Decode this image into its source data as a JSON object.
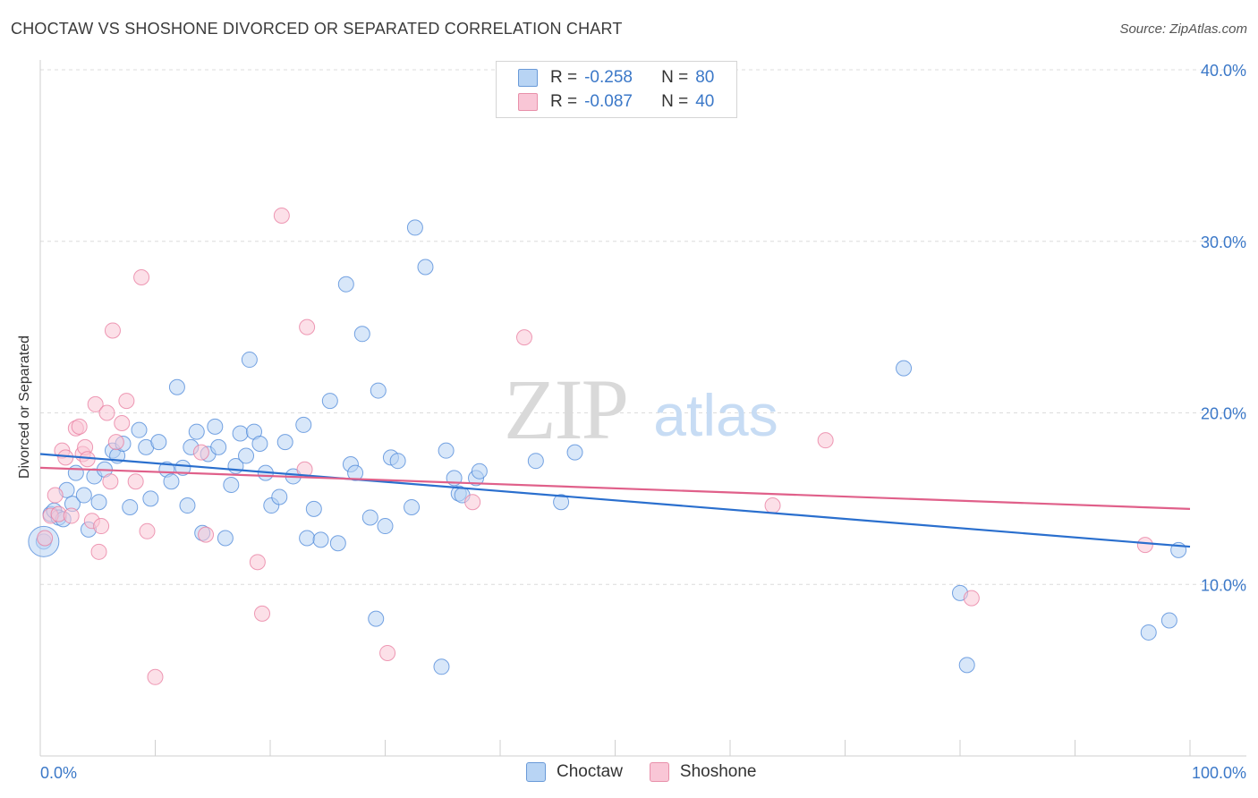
{
  "title": "CHOCTAW VS SHOSHONE DIVORCED OR SEPARATED CORRELATION CHART",
  "source": "Source: ZipAtlas.com",
  "watermark": {
    "zip": "ZIP",
    "atlas": "atlas"
  },
  "legend": {
    "r_label": "R =",
    "n_label": "N =",
    "rows": [
      {
        "name": "Choctaw",
        "r": "-0.258",
        "n": "80",
        "color": "#a8c8f0",
        "border": "#6a9ad8"
      },
      {
        "name": "Shoshone",
        "r": "-0.087",
        "n": "40",
        "color": "#f8bcd0",
        "border": "#e890aa"
      }
    ]
  },
  "bottom_legend": {
    "choctaw": "Choctaw",
    "shoshone": "Shoshone"
  },
  "chart_data": {
    "type": "scatter",
    "title": "CHOCTAW VS SHOSHONE DIVORCED OR SEPARATED CORRELATION CHART",
    "xlabel": "",
    "ylabel": "Divorced or Separated",
    "xlim": [
      0,
      100
    ],
    "ylim": [
      0,
      40
    ],
    "x_tick_labels": [
      "0.0%",
      "100.0%"
    ],
    "y_tick_labels": [
      "10.0%",
      "20.0%",
      "30.0%",
      "40.0%"
    ],
    "y_ticks": [
      10,
      20,
      30,
      40
    ],
    "grid": true,
    "legend_position": "top-center",
    "series": [
      {
        "name": "Choctaw",
        "color": "#4a86d8",
        "fill": "#b8d4f4",
        "trend": {
          "x": [
            0,
            100
          ],
          "y": [
            17.6,
            12.2
          ],
          "color": "#2a6fce"
        },
        "points": [
          [
            0.3,
            12.5
          ],
          [
            0.9,
            14.1
          ],
          [
            1.2,
            14.3
          ],
          [
            1.6,
            13.9
          ],
          [
            2.0,
            13.8
          ],
          [
            2.3,
            15.5
          ],
          [
            2.8,
            14.7
          ],
          [
            3.1,
            16.5
          ],
          [
            3.8,
            15.2
          ],
          [
            4.2,
            13.2
          ],
          [
            4.7,
            16.3
          ],
          [
            5.1,
            14.8
          ],
          [
            5.6,
            16.7
          ],
          [
            6.3,
            17.8
          ],
          [
            6.7,
            17.5
          ],
          [
            7.2,
            18.2
          ],
          [
            7.8,
            14.5
          ],
          [
            8.6,
            19.0
          ],
          [
            9.2,
            18.0
          ],
          [
            9.6,
            15.0
          ],
          [
            10.3,
            18.3
          ],
          [
            11.0,
            16.7
          ],
          [
            11.4,
            16.0
          ],
          [
            11.9,
            21.5
          ],
          [
            12.4,
            16.8
          ],
          [
            12.8,
            14.6
          ],
          [
            13.1,
            18.0
          ],
          [
            13.6,
            18.9
          ],
          [
            14.1,
            13.0
          ],
          [
            14.6,
            17.6
          ],
          [
            15.2,
            19.2
          ],
          [
            15.5,
            18.0
          ],
          [
            16.1,
            12.7
          ],
          [
            16.6,
            15.8
          ],
          [
            17.0,
            16.9
          ],
          [
            17.4,
            18.8
          ],
          [
            17.9,
            17.5
          ],
          [
            18.2,
            23.1
          ],
          [
            18.6,
            18.9
          ],
          [
            19.1,
            18.2
          ],
          [
            19.6,
            16.5
          ],
          [
            20.1,
            14.6
          ],
          [
            20.8,
            15.1
          ],
          [
            21.3,
            18.3
          ],
          [
            22.0,
            16.3
          ],
          [
            22.9,
            19.3
          ],
          [
            23.2,
            12.7
          ],
          [
            23.8,
            14.4
          ],
          [
            24.4,
            12.6
          ],
          [
            25.2,
            20.7
          ],
          [
            25.9,
            12.4
          ],
          [
            26.6,
            27.5
          ],
          [
            27.0,
            17.0
          ],
          [
            27.4,
            16.5
          ],
          [
            28.0,
            24.6
          ],
          [
            28.7,
            13.9
          ],
          [
            29.2,
            8.0
          ],
          [
            29.4,
            21.3
          ],
          [
            30.0,
            13.4
          ],
          [
            30.5,
            17.4
          ],
          [
            31.1,
            17.2
          ],
          [
            32.3,
            14.5
          ],
          [
            32.6,
            30.8
          ],
          [
            33.5,
            28.5
          ],
          [
            34.9,
            5.2
          ],
          [
            35.3,
            17.8
          ],
          [
            36.0,
            16.2
          ],
          [
            36.4,
            15.3
          ],
          [
            36.7,
            15.2
          ],
          [
            37.9,
            16.2
          ],
          [
            38.2,
            16.6
          ],
          [
            43.1,
            17.2
          ],
          [
            45.3,
            14.8
          ],
          [
            46.5,
            17.7
          ],
          [
            75.1,
            22.6
          ],
          [
            80.0,
            9.5
          ],
          [
            80.6,
            5.3
          ],
          [
            96.4,
            7.2
          ],
          [
            98.2,
            7.9
          ],
          [
            99.0,
            12.0
          ]
        ],
        "big_point": [
          0.3,
          12.5
        ]
      },
      {
        "name": "Shoshone",
        "color": "#e8799d",
        "fill": "#f9c6d6",
        "trend": {
          "x": [
            0,
            100
          ],
          "y": [
            16.8,
            14.4
          ],
          "color": "#e0608a"
        },
        "points": [
          [
            0.4,
            12.7
          ],
          [
            0.9,
            14.0
          ],
          [
            1.3,
            15.2
          ],
          [
            1.6,
            14.1
          ],
          [
            1.9,
            17.8
          ],
          [
            2.2,
            17.4
          ],
          [
            2.7,
            14.0
          ],
          [
            3.1,
            19.1
          ],
          [
            3.4,
            19.2
          ],
          [
            3.7,
            17.6
          ],
          [
            3.9,
            18.0
          ],
          [
            4.1,
            17.3
          ],
          [
            4.5,
            13.7
          ],
          [
            4.8,
            20.5
          ],
          [
            5.1,
            11.9
          ],
          [
            5.3,
            13.4
          ],
          [
            5.8,
            20.0
          ],
          [
            6.1,
            16.0
          ],
          [
            6.3,
            24.8
          ],
          [
            6.6,
            18.3
          ],
          [
            7.1,
            19.4
          ],
          [
            7.5,
            20.7
          ],
          [
            8.3,
            16.0
          ],
          [
            8.8,
            27.9
          ],
          [
            9.3,
            13.1
          ],
          [
            10.0,
            4.6
          ],
          [
            14.0,
            17.7
          ],
          [
            14.4,
            12.9
          ],
          [
            18.9,
            11.3
          ],
          [
            19.3,
            8.3
          ],
          [
            21.0,
            31.5
          ],
          [
            23.0,
            16.7
          ],
          [
            23.2,
            25.0
          ],
          [
            30.2,
            6.0
          ],
          [
            37.6,
            14.8
          ],
          [
            42.1,
            24.4
          ],
          [
            63.7,
            14.6
          ],
          [
            68.3,
            18.4
          ],
          [
            81.0,
            9.2
          ],
          [
            96.1,
            12.3
          ]
        ]
      }
    ]
  }
}
